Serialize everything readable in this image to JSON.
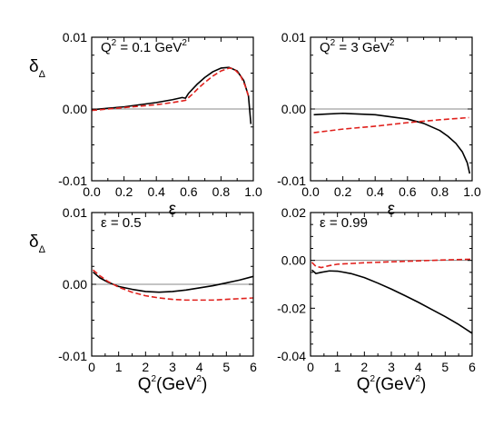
{
  "chart_data": [
    {
      "type": "line",
      "panel": "top-left",
      "annotation": {
        "base": "Q",
        "sup": "2",
        "rest": " = 0.1 GeV",
        "sup2": "2"
      },
      "ylabel": {
        "main": "δ",
        "sub": "Δ"
      },
      "xlabel": {
        "main": "ε",
        "sup": "",
        "rest": ""
      },
      "xlim": [
        0,
        1
      ],
      "ylim": [
        -0.01,
        0.01
      ],
      "xticks": [
        0.0,
        0.2,
        0.4,
        0.6,
        0.8,
        1.0
      ],
      "xticklabels": [
        "0.0",
        "0.2",
        "0.4",
        "0.6",
        "0.8",
        "1.0"
      ],
      "yticks": [
        -0.01,
        0.0,
        0.01
      ],
      "yticklabels": [
        "-0.01",
        "0.00",
        "0.01"
      ],
      "zero_line": true,
      "series": [
        {
          "color": "#000000",
          "dash": "solid",
          "x": [
            0.0,
            0.1,
            0.2,
            0.3,
            0.4,
            0.5,
            0.56,
            0.58,
            0.6,
            0.65,
            0.7,
            0.75,
            0.8,
            0.85,
            0.9,
            0.94,
            0.97,
            0.985
          ],
          "y": [
            -0.0001,
            0.0001,
            0.0003,
            0.0006,
            0.0009,
            0.0013,
            0.0016,
            0.0015,
            0.0022,
            0.0034,
            0.0044,
            0.0052,
            0.0057,
            0.0058,
            0.0053,
            0.004,
            0.0018,
            -0.0021
          ]
        },
        {
          "color": "#e0201c",
          "dash": "dashed",
          "x": [
            0.0,
            0.1,
            0.2,
            0.3,
            0.4,
            0.5,
            0.58,
            0.62,
            0.66,
            0.7,
            0.75,
            0.8,
            0.85,
            0.88,
            0.92,
            0.95,
            0.97
          ],
          "y": [
            -0.0002,
            0.0,
            0.0002,
            0.0004,
            0.0006,
            0.0009,
            0.0012,
            0.002,
            0.0029,
            0.0037,
            0.0046,
            0.0053,
            0.0057,
            0.0056,
            0.0047,
            0.0032,
            0.0018
          ]
        }
      ]
    },
    {
      "type": "line",
      "panel": "top-right",
      "annotation": {
        "base": "Q",
        "sup": "2",
        "rest": " = 3 GeV",
        "sup2": "2"
      },
      "ylabel": {
        "main": "",
        "sub": ""
      },
      "xlabel": {
        "main": "ε",
        "sup": "",
        "rest": ""
      },
      "xlim": [
        0,
        1
      ],
      "ylim": [
        -0.01,
        0.01
      ],
      "xticks": [
        0.0,
        0.2,
        0.4,
        0.6,
        0.8,
        1.0
      ],
      "xticklabels": [
        "0.0",
        "0.2",
        "0.4",
        "0.6",
        "0.8",
        "1.0"
      ],
      "yticks": [
        -0.01,
        0.0,
        0.01
      ],
      "yticklabels": [
        "-0.01",
        "0.00",
        "0.01"
      ],
      "zero_line": true,
      "series": [
        {
          "color": "#000000",
          "dash": "solid",
          "x": [
            0.02,
            0.1,
            0.2,
            0.3,
            0.4,
            0.5,
            0.6,
            0.7,
            0.8,
            0.85,
            0.9,
            0.94,
            0.97,
            0.985
          ],
          "y": [
            -0.0008,
            -0.0007,
            -0.0006,
            -0.0007,
            -0.0008,
            -0.0011,
            -0.0014,
            -0.002,
            -0.003,
            -0.0038,
            -0.0048,
            -0.006,
            -0.0075,
            -0.009
          ]
        },
        {
          "color": "#e0201c",
          "dash": "dashed",
          "x": [
            0.02,
            0.2,
            0.4,
            0.6,
            0.8,
            0.98
          ],
          "y": [
            -0.0033,
            -0.0028,
            -0.0024,
            -0.0019,
            -0.0015,
            -0.0012
          ]
        }
      ]
    },
    {
      "type": "line",
      "panel": "bottom-left",
      "annotation": {
        "base": "ε = 0.5",
        "sup": "",
        "rest": "",
        "sup2": ""
      },
      "ylabel": {
        "main": "δ",
        "sub": "Δ"
      },
      "xlabel": {
        "main": "Q",
        "sup": "2",
        "rest": "(GeV",
        "sup2": "2",
        "end": ")"
      },
      "xlim": [
        0,
        6
      ],
      "ylim": [
        -0.01,
        0.01
      ],
      "xticks": [
        0,
        1,
        2,
        3,
        4,
        5,
        6
      ],
      "xticklabels": [
        "0",
        "1",
        "2",
        "3",
        "4",
        "5",
        "6"
      ],
      "yticks": [
        -0.01,
        0.0,
        0.01
      ],
      "yticklabels": [
        "-0.01",
        "0.00",
        "0.01"
      ],
      "zero_line": true,
      "series": [
        {
          "color": "#000000",
          "dash": "solid",
          "x": [
            0.05,
            0.3,
            0.6,
            1.0,
            1.5,
            2.0,
            2.5,
            3.0,
            3.5,
            4.0,
            4.5,
            5.0,
            5.5,
            6.0
          ],
          "y": [
            0.0017,
            0.0009,
            0.0003,
            -0.0003,
            -0.0007,
            -0.001,
            -0.0011,
            -0.001,
            -0.0008,
            -0.0005,
            -0.0002,
            0.0002,
            0.0006,
            0.0011
          ]
        },
        {
          "color": "#e0201c",
          "dash": "dashed",
          "x": [
            0.05,
            0.3,
            0.6,
            1.0,
            1.5,
            2.0,
            2.5,
            3.0,
            3.5,
            4.0,
            4.5,
            5.0,
            5.5,
            6.0
          ],
          "y": [
            0.002,
            0.0012,
            0.0004,
            -0.0004,
            -0.0011,
            -0.0016,
            -0.0019,
            -0.0021,
            -0.0022,
            -0.0022,
            -0.0022,
            -0.0021,
            -0.002,
            -0.0019
          ]
        }
      ]
    },
    {
      "type": "line",
      "panel": "bottom-right",
      "annotation": {
        "base": "ε = 0.99",
        "sup": "",
        "rest": "",
        "sup2": ""
      },
      "ylabel": {
        "main": "",
        "sub": ""
      },
      "xlabel": {
        "main": "Q",
        "sup": "2",
        "rest": "(GeV",
        "sup2": "2",
        "end": ")"
      },
      "xlim": [
        0,
        6
      ],
      "ylim": [
        -0.04,
        0.02
      ],
      "xticks": [
        0,
        1,
        2,
        3,
        4,
        5,
        6
      ],
      "xticklabels": [
        "0",
        "1",
        "2",
        "3",
        "4",
        "5",
        "6"
      ],
      "yticks": [
        -0.04,
        -0.02,
        0.0,
        0.02
      ],
      "yticklabels": [
        "-0.04",
        "-0.02",
        "0.00",
        "0.02"
      ],
      "zero_line": true,
      "series": [
        {
          "color": "#000000",
          "dash": "solid",
          "x": [
            0.05,
            0.2,
            0.4,
            0.7,
            1.0,
            1.5,
            2.0,
            2.5,
            3.0,
            3.5,
            4.0,
            4.5,
            5.0,
            5.5,
            6.0
          ],
          "y": [
            -0.004,
            -0.0055,
            -0.005,
            -0.0044,
            -0.0045,
            -0.0055,
            -0.0072,
            -0.0095,
            -0.012,
            -0.0147,
            -0.0175,
            -0.0205,
            -0.0235,
            -0.0268,
            -0.0305
          ]
        },
        {
          "color": "#e0201c",
          "dash": "dashed",
          "x": [
            0.05,
            0.2,
            0.4,
            0.7,
            1.0,
            2.0,
            3.0,
            4.0,
            5.0,
            6.0
          ],
          "y": [
            -0.0008,
            -0.0025,
            -0.003,
            -0.0022,
            -0.0016,
            -0.001,
            -0.0006,
            -0.0002,
            0.0002,
            0.0005
          ]
        }
      ]
    }
  ]
}
